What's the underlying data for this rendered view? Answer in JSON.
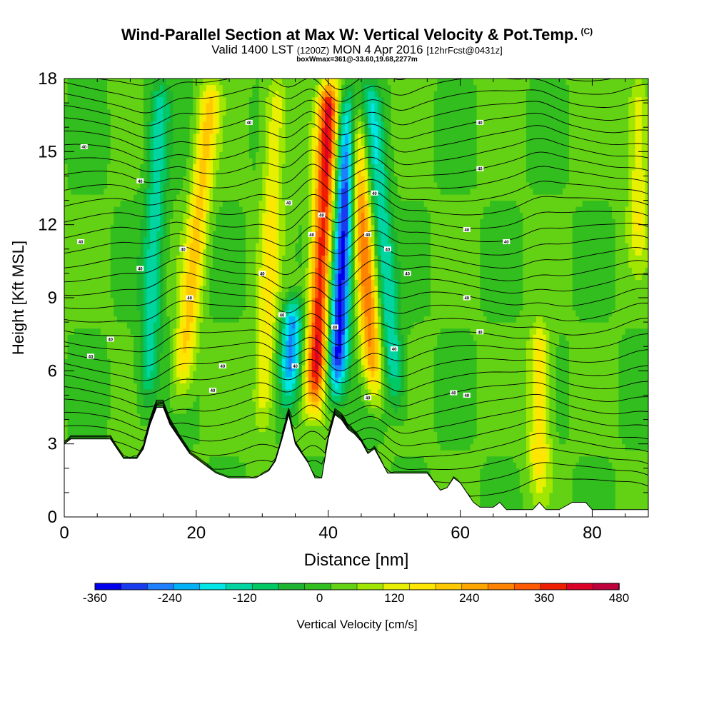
{
  "header": {
    "title": "Wind-Parallel Section at Max W: Vertical Velocity & Pot.Temp.",
    "title_tag": "(C)",
    "valid_prefix": "Valid 1400 LST",
    "valid_utc": "(1200Z)",
    "valid_date": "MON 4 Apr 2016",
    "forecast": "[12hrFcst@0431z]",
    "box_info": "boxWmax=361@-33.60,19.68,2277m"
  },
  "chart_data": {
    "type": "heatmap",
    "xlabel": "Distance [nm]",
    "ylabel": "Height [Kft MSL]",
    "xlim": [
      0,
      88.5
    ],
    "ylim": [
      0,
      18
    ],
    "x_ticks": [
      "0",
      "20",
      "40",
      "60",
      "80"
    ],
    "x_tick_values": [
      0,
      20,
      40,
      60,
      80
    ],
    "y_ticks": [
      "0",
      "3",
      "6",
      "9",
      "12",
      "15",
      "18"
    ],
    "y_tick_values": [
      0,
      3,
      6,
      9,
      12,
      15,
      18
    ],
    "colorbar": {
      "label": "Vertical Velocity [cm/s]",
      "min": -360,
      "max": 480,
      "tick_labels": [
        "-360",
        "-240",
        "-120",
        "0",
        "120",
        "240",
        "360",
        "480"
      ],
      "colors": [
        "#0000ee",
        "#1a3cf0",
        "#1e7fff",
        "#00b2f5",
        "#00e6e6",
        "#00d4a0",
        "#00c864",
        "#1eb432",
        "#32be1e",
        "#64d214",
        "#a0e600",
        "#e6f000",
        "#ffe600",
        "#ffc800",
        "#ffa500",
        "#ff8200",
        "#ff5a00",
        "#f01e00",
        "#dc0028",
        "#be003c"
      ]
    },
    "terrain_kft": [
      [
        0,
        3.0
      ],
      [
        1,
        3.2
      ],
      [
        7,
        3.2
      ],
      [
        8,
        2.8
      ],
      [
        9,
        2.4
      ],
      [
        11,
        2.4
      ],
      [
        12,
        2.8
      ],
      [
        13,
        3.8
      ],
      [
        14,
        4.5
      ],
      [
        15,
        4.5
      ],
      [
        16,
        3.8
      ],
      [
        17,
        3.4
      ],
      [
        18,
        3.0
      ],
      [
        19,
        2.6
      ],
      [
        20,
        2.4
      ],
      [
        21,
        2.2
      ],
      [
        22,
        2.0
      ],
      [
        23,
        1.8
      ],
      [
        25,
        1.6
      ],
      [
        29,
        1.6
      ],
      [
        31,
        1.9
      ],
      [
        32,
        2.3
      ],
      [
        33,
        3.2
      ],
      [
        34,
        4.2
      ],
      [
        35,
        3.0
      ],
      [
        36,
        2.6
      ],
      [
        37,
        2.2
      ],
      [
        38,
        1.6
      ],
      [
        39,
        1.6
      ],
      [
        40,
        3.2
      ],
      [
        41,
        4.2
      ],
      [
        42,
        4.0
      ],
      [
        43,
        3.6
      ],
      [
        44,
        3.4
      ],
      [
        45,
        3.1
      ],
      [
        46,
        2.6
      ],
      [
        47,
        2.8
      ],
      [
        48,
        2.3
      ],
      [
        49,
        1.8
      ],
      [
        51,
        1.8
      ],
      [
        55,
        1.8
      ],
      [
        57,
        1.1
      ],
      [
        58,
        1.2
      ],
      [
        59,
        1.6
      ],
      [
        60,
        1.4
      ],
      [
        61,
        1.0
      ],
      [
        62,
        0.6
      ],
      [
        63,
        0.4
      ],
      [
        65,
        0.4
      ],
      [
        66,
        0.6
      ],
      [
        67,
        0.3
      ],
      [
        69,
        0.3
      ],
      [
        70,
        0.3
      ],
      [
        71,
        0.3
      ],
      [
        72,
        0.6
      ],
      [
        73,
        0.3
      ],
      [
        75,
        0.3
      ],
      [
        77,
        0.6
      ],
      [
        79,
        0.6
      ],
      [
        80,
        0.3
      ],
      [
        84,
        0.3
      ],
      [
        86,
        0.3
      ],
      [
        88.5,
        0.3
      ]
    ],
    "updrafts": [
      {
        "x": 17.5,
        "base_kft": 4.5,
        "top_kft": 18,
        "tilt": 0.12,
        "w": 180
      },
      {
        "x": 37.8,
        "base_kft": 4.0,
        "top_kft": 18,
        "tilt": 0.06,
        "w": 380
      },
      {
        "x": 47.2,
        "base_kft": 4.5,
        "top_kft": 18,
        "tilt": -0.09,
        "w": 270
      },
      {
        "x": 30.0,
        "base_kft": 3.0,
        "top_kft": 18,
        "tilt": 0.05,
        "w": 130
      },
      {
        "x": 72.0,
        "base_kft": 0.5,
        "top_kft": 8,
        "tilt": 0.0,
        "w": 160
      },
      {
        "x": 87.0,
        "base_kft": 10,
        "top_kft": 18,
        "tilt": 0.0,
        "w": 120
      }
    ],
    "downdrafts": [
      {
        "x": 12.5,
        "base_kft": 4.0,
        "top_kft": 18,
        "tilt": 0.05,
        "w": -150
      },
      {
        "x": 41.0,
        "base_kft": 4.5,
        "top_kft": 18,
        "tilt": 0.06,
        "w": -360
      },
      {
        "x": 50.5,
        "base_kft": 4.0,
        "top_kft": 18,
        "tilt": -0.1,
        "w": -170
      },
      {
        "x": 34.0,
        "base_kft": 4.2,
        "top_kft": 9,
        "tilt": 0.05,
        "w": -260
      }
    ],
    "isentrope_label": "40"
  }
}
